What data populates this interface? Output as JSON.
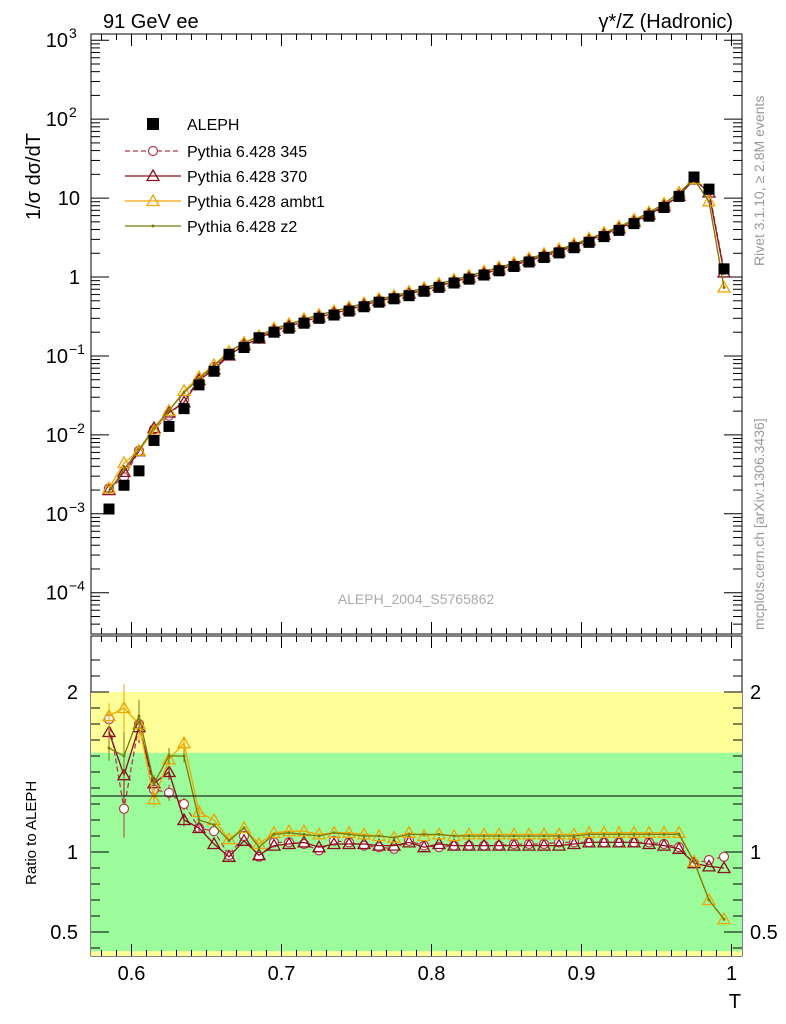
{
  "header": {
    "left": "91 GeV ee",
    "right": "γ*/Z (Hadronic)"
  },
  "side_text": {
    "top": "Rivet 3.1.10, ≥ 2.8M events",
    "bottom": "mcplots.cern.ch [arXiv:1306.3436]"
  },
  "watermark": "ALEPH_2004_S5765862",
  "colors": {
    "data": "#000000",
    "p345": "#b03a48",
    "p370": "#8b0f1e",
    "ambt1": "#f0a500",
    "z2": "#7a7a0a",
    "band_inner": "#9cfc9c",
    "band_outer": "#ffff99"
  },
  "chart_data": {
    "type": "line",
    "title": "",
    "xlabel": "T",
    "ylabel_top": "1/σ  dσ/dT",
    "ylabel_bottom": "Ratio to ALEPH",
    "xlim": [
      0.573,
      1.007
    ],
    "ylim_top": [
      3e-05,
      1200
    ],
    "ylog": true,
    "ylim_bottom": [
      0.35,
      2.35
    ],
    "x_ticks": [
      "0.6",
      "0.7",
      "0.8",
      "0.9",
      "1"
    ],
    "y_ticks_top": [
      "10^-4",
      "10^-3",
      "10^-2",
      "10^-1",
      "1",
      "10",
      "10^2",
      "10^3"
    ],
    "y_ticks_bottom": [
      "0.5",
      "1",
      "2"
    ],
    "x": [
      0.585,
      0.595,
      0.605,
      0.615,
      0.625,
      0.635,
      0.645,
      0.655,
      0.665,
      0.675,
      0.685,
      0.695,
      0.705,
      0.715,
      0.725,
      0.735,
      0.745,
      0.755,
      0.765,
      0.775,
      0.785,
      0.795,
      0.805,
      0.815,
      0.825,
      0.835,
      0.845,
      0.855,
      0.865,
      0.875,
      0.885,
      0.895,
      0.905,
      0.915,
      0.925,
      0.935,
      0.945,
      0.955,
      0.965,
      0.975,
      0.985,
      0.995
    ],
    "data": {
      "name": "ALEPH",
      "values": [
        0.00115,
        0.0023,
        0.0035,
        0.0085,
        0.0128,
        0.0215,
        0.043,
        0.064,
        0.105,
        0.128,
        0.17,
        0.2,
        0.225,
        0.26,
        0.3,
        0.33,
        0.37,
        0.42,
        0.48,
        0.53,
        0.58,
        0.66,
        0.74,
        0.84,
        0.94,
        1.06,
        1.2,
        1.36,
        1.55,
        1.77,
        2.02,
        2.35,
        2.75,
        3.25,
        3.9,
        4.75,
        5.9,
        7.6,
        10.5,
        18.5,
        13.0,
        1.27
      ],
      "band_inner_lo": [
        0.38,
        0.4,
        0.5,
        0.6,
        0.7,
        0.75,
        0.8,
        0.85,
        0.88,
        0.88,
        0.9,
        0.9,
        0.91,
        0.92,
        0.92,
        0.92,
        0.93,
        0.94,
        0.94,
        0.95,
        0.95,
        0.95,
        0.95,
        0.96,
        0.96,
        0.96,
        0.96,
        0.96,
        0.97,
        0.97,
        0.97,
        0.97,
        0.97,
        0.97,
        0.97,
        0.97,
        0.97,
        0.97,
        0.97,
        0.97,
        0.95,
        0.9
      ],
      "band_inner_hi": [
        1.62,
        1.6,
        1.5,
        1.4,
        1.3,
        1.25,
        1.2,
        1.15,
        1.12,
        1.12,
        1.1,
        1.1,
        1.09,
        1.08,
        1.08,
        1.08,
        1.07,
        1.06,
        1.06,
        1.05,
        1.05,
        1.05,
        1.05,
        1.04,
        1.04,
        1.04,
        1.04,
        1.04,
        1.03,
        1.03,
        1.03,
        1.03,
        1.03,
        1.03,
        1.03,
        1.03,
        1.03,
        1.03,
        1.03,
        1.03,
        1.05,
        1.1
      ],
      "band_outer_lo": [
        0.2,
        0.22,
        0.3,
        0.4,
        0.5,
        0.6,
        0.75,
        0.8,
        0.85,
        0.85,
        0.85,
        0.86,
        0.86,
        0.87,
        0.88,
        0.88,
        0.89,
        0.9,
        0.9,
        0.91,
        0.91,
        0.92,
        0.92,
        0.93,
        0.93,
        0.93,
        0.94,
        0.94,
        0.94,
        0.94,
        0.95,
        0.95,
        0.95,
        0.95,
        0.95,
        0.95,
        0.96,
        0.96,
        0.96,
        0.96,
        0.85,
        0.75
      ],
      "band_outer_hi": [
        2.0,
        1.95,
        1.8,
        1.6,
        1.5,
        1.4,
        1.3,
        1.25,
        1.2,
        1.18,
        1.16,
        1.15,
        1.14,
        1.13,
        1.13,
        1.12,
        1.12,
        1.11,
        1.1,
        1.1,
        1.1,
        1.09,
        1.09,
        1.09,
        1.08,
        1.08,
        1.08,
        1.08,
        1.07,
        1.07,
        1.07,
        1.07,
        1.07,
        1.07,
        1.07,
        1.07,
        1.07,
        1.07,
        1.07,
        1.07,
        1.2,
        1.4
      ]
    },
    "series": [
      {
        "name": "Pythia 6.428 345",
        "key": "p345",
        "marker": "circle",
        "dashed": true,
        "values": [
          0.0021,
          0.0029,
          0.0063,
          0.0118,
          0.0175,
          0.0279,
          0.0493,
          0.0724,
          0.1024,
          0.1402,
          0.1645,
          0.2128,
          0.238,
          0.274,
          0.3043,
          0.352,
          0.3925,
          0.4375,
          0.4956,
          0.5427,
          0.6206,
          0.6873,
          0.763,
          0.8761,
          0.9769,
          1.1016,
          1.2533,
          1.4304,
          1.6327,
          1.8651,
          2.1361,
          2.4902,
          2.9216,
          3.4516,
          4.1411,
          5.0396,
          6.2404,
          8.0031,
          10.8364,
          17.1144,
          12.336,
          1.237
        ],
        "ratio": [
          1.83,
          1.27,
          1.8,
          1.39,
          1.37,
          1.3,
          1.15,
          1.13,
          0.98,
          1.1,
          0.97,
          1.06,
          1.06,
          1.05,
          1.01,
          1.07,
          1.06,
          1.04,
          1.03,
          1.02,
          1.07,
          1.04,
          1.03,
          1.04,
          1.04,
          1.04,
          1.04,
          1.05,
          1.05,
          1.05,
          1.06,
          1.06,
          1.06,
          1.06,
          1.06,
          1.06,
          1.06,
          1.05,
          1.03,
          0.93,
          0.95,
          0.97
        ],
        "ratio_err": [
          0.08,
          0.18,
          0.12,
          0.06,
          0.05,
          0.04,
          0.03,
          0.02,
          0.02,
          0.02,
          0.02,
          0.01,
          0.01,
          0.01,
          0.01,
          0.01,
          0.01,
          0.01,
          0.01,
          0.01,
          0.01,
          0.01,
          0.01,
          0.01,
          0.01,
          0.01,
          0.01,
          0.01,
          0.01,
          0.01,
          0.01,
          0.01,
          0.01,
          0.01,
          0.01,
          0.01,
          0.01,
          0.01,
          0.01,
          0.01,
          0.01,
          0.01
        ]
      },
      {
        "name": "Pythia 6.428 370",
        "key": "p370",
        "marker": "triangle",
        "dashed": false,
        "values": [
          0.002,
          0.0034,
          0.0062,
          0.0122,
          0.0192,
          0.0258,
          0.0495,
          0.0672,
          0.1014,
          0.1372,
          0.1666,
          0.2086,
          0.2358,
          0.2743,
          0.3102,
          0.3476,
          0.3869,
          0.439,
          0.5011,
          0.5493,
          0.6165,
          0.6819,
          0.7739,
          0.875,
          0.9792,
          1.0995,
          1.248,
          1.4103,
          1.612,
          1.8355,
          2.1077,
          2.4682,
          2.9181,
          3.4416,
          4.1352,
          5.019,
          6.2075,
          7.8767,
          10.6964,
          17.2364,
          11.7755,
          1.1433
        ],
        "ratio": [
          1.75,
          1.48,
          1.78,
          1.43,
          1.5,
          1.2,
          1.15,
          1.05,
          0.97,
          1.07,
          0.98,
          1.04,
          1.05,
          1.06,
          1.03,
          1.05,
          1.05,
          1.05,
          1.04,
          1.04,
          1.06,
          1.03,
          1.05,
          1.04,
          1.04,
          1.04,
          1.04,
          1.04,
          1.04,
          1.04,
          1.04,
          1.05,
          1.06,
          1.06,
          1.06,
          1.06,
          1.05,
          1.04,
          1.02,
          0.93,
          0.91,
          0.9
        ],
        "ratio_err": [
          0.08,
          0.15,
          0.1,
          0.05,
          0.05,
          0.04,
          0.03,
          0.02,
          0.02,
          0.02,
          0.02,
          0.01,
          0.01,
          0.01,
          0.01,
          0.01,
          0.01,
          0.01,
          0.01,
          0.01,
          0.01,
          0.01,
          0.01,
          0.01,
          0.01,
          0.01,
          0.01,
          0.01,
          0.01,
          0.01,
          0.01,
          0.01,
          0.01,
          0.01,
          0.01,
          0.01,
          0.01,
          0.01,
          0.01,
          0.01,
          0.01,
          0.01
        ]
      },
      {
        "name": "Pythia 6.428 ambt1",
        "key": "ambt1",
        "marker": "triangle",
        "dashed": false,
        "values": [
          0.0021,
          0.0044,
          0.0063,
          0.0113,
          0.0202,
          0.0361,
          0.0538,
          0.0768,
          0.1134,
          0.1472,
          0.1785,
          0.224,
          0.2543,
          0.2938,
          0.3321,
          0.3696,
          0.4144,
          0.4662,
          0.529,
          0.5777,
          0.6496,
          0.726,
          0.8214,
          0.924,
          1.0434,
          1.1766,
          1.332,
          1.5096,
          1.7205,
          1.9647,
          2.2422,
          2.6085,
          3.08,
          3.64,
          4.368,
          5.32,
          6.608,
          8.512,
          11.76,
          17.39,
          9.1,
          0.7366
        ],
        "ratio": [
          1.85,
          1.9,
          1.8,
          1.33,
          1.58,
          1.68,
          1.25,
          1.2,
          1.08,
          1.15,
          1.05,
          1.12,
          1.13,
          1.13,
          1.11,
          1.12,
          1.12,
          1.11,
          1.1,
          1.09,
          1.12,
          1.1,
          1.11,
          1.1,
          1.11,
          1.11,
          1.11,
          1.11,
          1.11,
          1.11,
          1.11,
          1.11,
          1.12,
          1.12,
          1.12,
          1.12,
          1.12,
          1.12,
          1.12,
          0.94,
          0.7,
          0.58
        ],
        "ratio_err": [
          0.08,
          0.15,
          0.1,
          0.05,
          0.05,
          0.04,
          0.03,
          0.02,
          0.02,
          0.02,
          0.02,
          0.01,
          0.01,
          0.01,
          0.01,
          0.01,
          0.01,
          0.01,
          0.01,
          0.01,
          0.01,
          0.01,
          0.01,
          0.01,
          0.01,
          0.01,
          0.01,
          0.01,
          0.01,
          0.01,
          0.01,
          0.01,
          0.01,
          0.01,
          0.01,
          0.01,
          0.01,
          0.01,
          0.01,
          0.01,
          0.01,
          0.01
        ]
      },
      {
        "name": "Pythia 6.428 z2",
        "key": "z2",
        "marker": "dot",
        "dashed": false,
        "values": [
          0.0019,
          0.0037,
          0.0065,
          0.0122,
          0.0205,
          0.0344,
          0.0516,
          0.0749,
          0.1124,
          0.1472,
          0.1751,
          0.222,
          0.252,
          0.2886,
          0.33,
          0.3696,
          0.4107,
          0.462,
          0.528,
          0.5777,
          0.6438,
          0.7326,
          0.8214,
          0.924,
          1.034,
          1.166,
          1.32,
          1.496,
          1.705,
          1.947,
          2.222,
          2.585,
          3.0525,
          3.6075,
          4.329,
          5.2725,
          6.549,
          8.436,
          11.655,
          17.39,
          9.1,
          0.7366
        ],
        "ratio": [
          1.65,
          1.6,
          1.85,
          1.43,
          1.6,
          1.6,
          1.2,
          1.17,
          1.07,
          1.15,
          1.03,
          1.11,
          1.12,
          1.11,
          1.1,
          1.12,
          1.11,
          1.1,
          1.1,
          1.09,
          1.11,
          1.11,
          1.11,
          1.1,
          1.1,
          1.1,
          1.1,
          1.1,
          1.1,
          1.1,
          1.1,
          1.1,
          1.11,
          1.11,
          1.11,
          1.11,
          1.11,
          1.11,
          1.11,
          0.94,
          0.7,
          0.58
        ],
        "ratio_err": [
          0.08,
          0.15,
          0.1,
          0.05,
          0.05,
          0.04,
          0.03,
          0.02,
          0.02,
          0.02,
          0.02,
          0.01,
          0.01,
          0.01,
          0.01,
          0.01,
          0.01,
          0.01,
          0.01,
          0.01,
          0.01,
          0.01,
          0.01,
          0.01,
          0.01,
          0.01,
          0.01,
          0.01,
          0.01,
          0.01,
          0.01,
          0.01,
          0.01,
          0.01,
          0.01,
          0.01,
          0.01,
          0.01,
          0.01,
          0.01,
          0.01,
          0.01
        ]
      }
    ]
  }
}
